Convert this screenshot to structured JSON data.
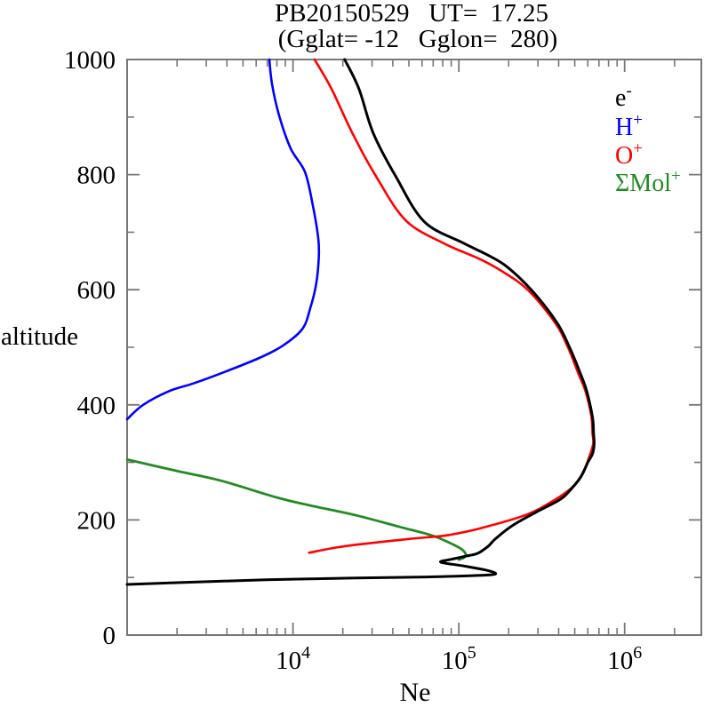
{
  "chart_data": {
    "type": "line",
    "title": "PB20150529   UT=  17.25",
    "subtitle": "(Gglat= -12   Gglon=  280)",
    "xlabel": "Ne",
    "ylabel": "altitude",
    "x_scale": "log",
    "xlim": [
      1000,
      2900000
    ],
    "ylim": [
      0,
      1000
    ],
    "frame_color": "#777777",
    "x_major_ticks": [
      {
        "value": 10000,
        "base": "10",
        "exp": "4"
      },
      {
        "value": 100000,
        "base": "10",
        "exp": "5"
      },
      {
        "value": 1000000,
        "base": "10",
        "exp": "6"
      }
    ],
    "x_minor_decades": [
      1000,
      10000,
      100000,
      1000000
    ],
    "y_major_ticks": [
      {
        "value": 0,
        "label": "0"
      },
      {
        "value": 200,
        "label": "200"
      },
      {
        "value": 400,
        "label": "400"
      },
      {
        "value": 600,
        "label": "600"
      },
      {
        "value": 800,
        "label": "800"
      },
      {
        "value": 1000,
        "label": "1000"
      }
    ],
    "y_minor_ticks": [
      100,
      300,
      500,
      700,
      900
    ],
    "legend": {
      "position": "top-right",
      "items": [
        {
          "id": "electron",
          "base": "e",
          "sup": "-",
          "color": "#000000"
        },
        {
          "id": "h-plus",
          "base": "H",
          "sup": "+",
          "color": "#0000ff"
        },
        {
          "id": "o-plus",
          "base": "O",
          "sup": "+",
          "color": "#ff0000"
        },
        {
          "id": "mol-plus",
          "base": "ΣMol",
          "sup": "+",
          "color": "#228b22"
        }
      ]
    },
    "series": [
      {
        "id": "electron",
        "label": "e-",
        "color": "#000000",
        "width": 3,
        "points": [
          [
            1000,
            88
          ],
          [
            2000,
            91
          ],
          [
            6900,
            96
          ],
          [
            24000,
            99
          ],
          [
            64000,
            101
          ],
          [
            130000,
            103.5
          ],
          [
            166000,
            106
          ],
          [
            150000,
            112
          ],
          [
            107000,
            120
          ],
          [
            78000,
            126.5
          ],
          [
            88000,
            131
          ],
          [
            110000,
            137
          ],
          [
            130000,
            142
          ],
          [
            150000,
            154
          ],
          [
            166000,
            167
          ],
          [
            210000,
            190
          ],
          [
            290000,
            213
          ],
          [
            410000,
            236
          ],
          [
            480000,
            255
          ],
          [
            545000,
            275
          ],
          [
            600000,
            300
          ],
          [
            640000,
            315
          ],
          [
            655000,
            331
          ],
          [
            650000,
            350
          ],
          [
            640000,
            378
          ],
          [
            590000,
            424
          ],
          [
            540000,
            455
          ],
          [
            465000,
            500
          ],
          [
            390000,
            543
          ],
          [
            275000,
            599
          ],
          [
            195000,
            640
          ],
          [
            150000,
            660
          ],
          [
            105000,
            682
          ],
          [
            62000,
            718
          ],
          [
            42000,
            795
          ],
          [
            30500,
            872
          ],
          [
            25000,
            949
          ],
          [
            20500,
            1000
          ]
        ]
      },
      {
        "id": "h-plus",
        "label": "H+",
        "color": "#0000ff",
        "width": 2.6,
        "points": [
          [
            1000,
            375
          ],
          [
            1250,
            400
          ],
          [
            1800,
            424
          ],
          [
            2500,
            437
          ],
          [
            3700,
            455
          ],
          [
            6100,
            480
          ],
          [
            8600,
            502
          ],
          [
            11400,
            532
          ],
          [
            12800,
            571
          ],
          [
            13800,
            610
          ],
          [
            14300,
            655
          ],
          [
            14200,
            690
          ],
          [
            13100,
            750
          ],
          [
            11800,
            805
          ],
          [
            9700,
            845
          ],
          [
            8300,
            900
          ],
          [
            7500,
            955
          ],
          [
            7200,
            1000
          ]
        ]
      },
      {
        "id": "o-plus",
        "label": "O+",
        "color": "#ff0000",
        "width": 2.6,
        "points": [
          [
            12500,
            143
          ],
          [
            19000,
            153
          ],
          [
            30000,
            160
          ],
          [
            50000,
            167
          ],
          [
            72000,
            171
          ],
          [
            88000,
            174
          ],
          [
            133000,
            185
          ],
          [
            250000,
            208
          ],
          [
            360000,
            231
          ],
          [
            475000,
            255
          ],
          [
            545000,
            276
          ],
          [
            595000,
            300
          ],
          [
            645000,
            331
          ],
          [
            640000,
            350
          ],
          [
            630000,
            380
          ],
          [
            580000,
            424
          ],
          [
            525000,
            455
          ],
          [
            455000,
            500
          ],
          [
            380000,
            543
          ],
          [
            260000,
            600
          ],
          [
            180000,
            633
          ],
          [
            130000,
            655
          ],
          [
            82000,
            680
          ],
          [
            48000,
            720
          ],
          [
            32000,
            795
          ],
          [
            23000,
            870
          ],
          [
            17000,
            950
          ],
          [
            13500,
            1000
          ]
        ]
      },
      {
        "id": "mol-plus",
        "label": "ΣMol+",
        "color": "#228b22",
        "width": 2.8,
        "points": [
          [
            1000,
            305
          ],
          [
            2000,
            285
          ],
          [
            3700,
            268
          ],
          [
            8000,
            239
          ],
          [
            12800,
            225
          ],
          [
            24000,
            208
          ],
          [
            44000,
            188
          ],
          [
            69000,
            173
          ],
          [
            90000,
            159
          ],
          [
            103000,
            150
          ],
          [
            110000,
            141
          ],
          [
            108000,
            135
          ],
          [
            100000,
            131
          ]
        ]
      }
    ]
  }
}
